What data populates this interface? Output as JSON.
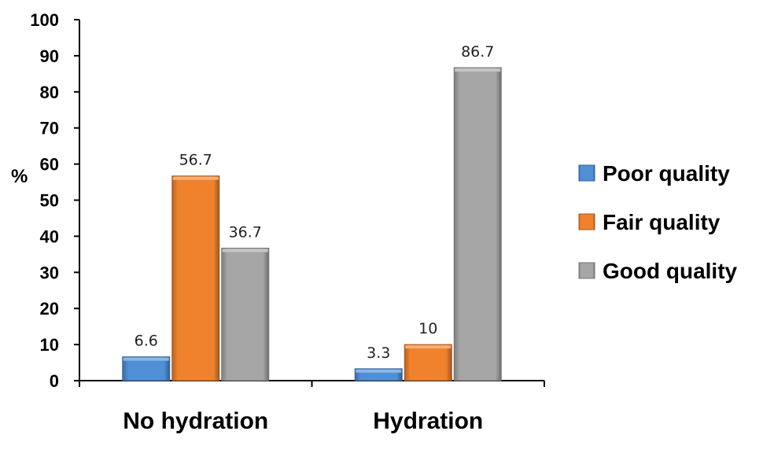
{
  "chart_data": {
    "type": "bar",
    "ylabel": "%",
    "xlabel": "",
    "ylim": [
      0,
      100
    ],
    "yticks": [
      0,
      10,
      20,
      30,
      40,
      50,
      60,
      70,
      80,
      90,
      100
    ],
    "categories": [
      "No hydration",
      "Hydration"
    ],
    "series": [
      {
        "name": "Poor quality",
        "values": [
          6.6,
          3.3
        ],
        "labels": [
          "6.6",
          "3.3"
        ],
        "color": "#4f8fd6"
      },
      {
        "name": "Fair quality",
        "values": [
          56.7,
          10
        ],
        "labels": [
          "56.7",
          "10"
        ],
        "color": "#f0822e"
      },
      {
        "name": "Good quality",
        "values": [
          36.7,
          86.7
        ],
        "labels": [
          "36.7",
          "86.7"
        ],
        "color": "#a6a6a6"
      }
    ],
    "legend_position": "right",
    "grid": false
  }
}
